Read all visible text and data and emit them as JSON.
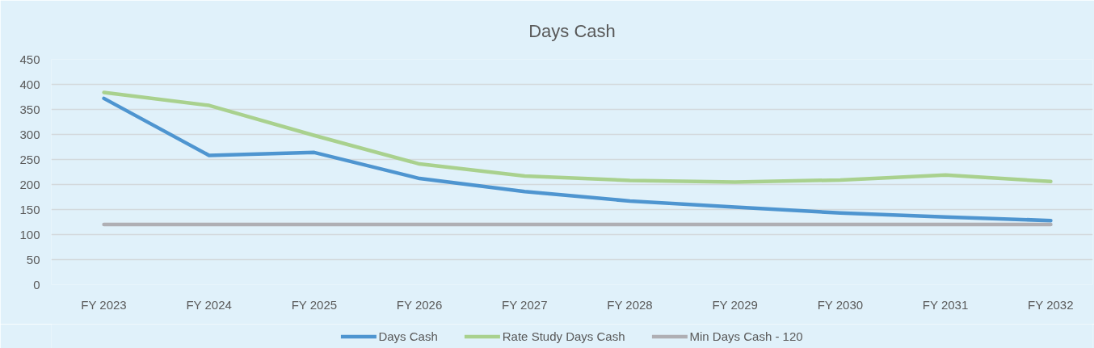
{
  "chart_data": {
    "type": "line",
    "title": "Days Cash",
    "categories": [
      "FY 2023",
      "FY 2024",
      "FY 2025",
      "FY 2026",
      "FY 2027",
      "FY 2028",
      "FY 2029",
      "FY 2030",
      "FY 2031",
      "FY 2032"
    ],
    "series": [
      {
        "name": "Days Cash",
        "color": "#4e95d0",
        "values": [
          372,
          258,
          264,
          212,
          186,
          167,
          155,
          143,
          135,
          128
        ]
      },
      {
        "name": "Rate Study Days Cash",
        "color": "#a9d18e",
        "values": [
          384,
          358,
          298,
          241,
          217,
          208,
          205,
          209,
          219,
          206
        ]
      },
      {
        "name": "Min Days Cash - 120",
        "color": "#afafb4",
        "values": [
          120,
          120,
          120,
          120,
          120,
          120,
          120,
          120,
          120,
          120
        ]
      }
    ],
    "ylim": [
      0,
      450
    ],
    "yticks": [
      0,
      50,
      100,
      150,
      200,
      250,
      300,
      350,
      400,
      450
    ],
    "grid": "y",
    "legend": "bottom",
    "marker": "none",
    "line_style": "solid"
  }
}
